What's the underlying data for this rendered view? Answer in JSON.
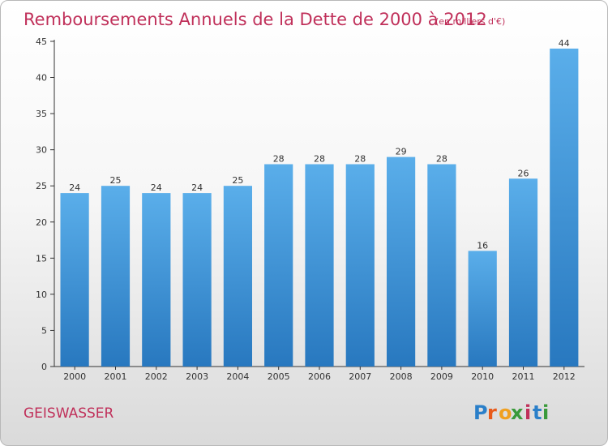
{
  "commune": "GEISWASSER",
  "logo": {
    "text": "Proxiti",
    "letter_colors": [
      "#2a7fc9",
      "#e85a1a",
      "#f0a020",
      "#3a9a3a",
      "#c0305a",
      "#2a7fc9",
      "#3a9a3a"
    ]
  },
  "colors": {
    "bar_top": "#5aaeea",
    "bar_bottom": "#2878bf",
    "title": "#c0305a",
    "axis": "#333333",
    "grid": "#d0d0d0"
  },
  "chart_data": {
    "type": "bar",
    "title": "Remboursements Annuels de la Dette de 2000 à 2012",
    "subtitle": "(en milliers d'€)",
    "xlabel": "",
    "ylabel": "",
    "categories": [
      "2000",
      "2001",
      "2002",
      "2003",
      "2004",
      "2005",
      "2006",
      "2007",
      "2008",
      "2009",
      "2010",
      "2011",
      "2012"
    ],
    "values": [
      24,
      25,
      24,
      24,
      25,
      28,
      28,
      28,
      29,
      28,
      16,
      26,
      44
    ],
    "ylim": [
      0,
      45
    ],
    "yticks": [
      0,
      5,
      10,
      15,
      20,
      25,
      30,
      35,
      40,
      45
    ],
    "grid": false,
    "data_labels": true
  }
}
